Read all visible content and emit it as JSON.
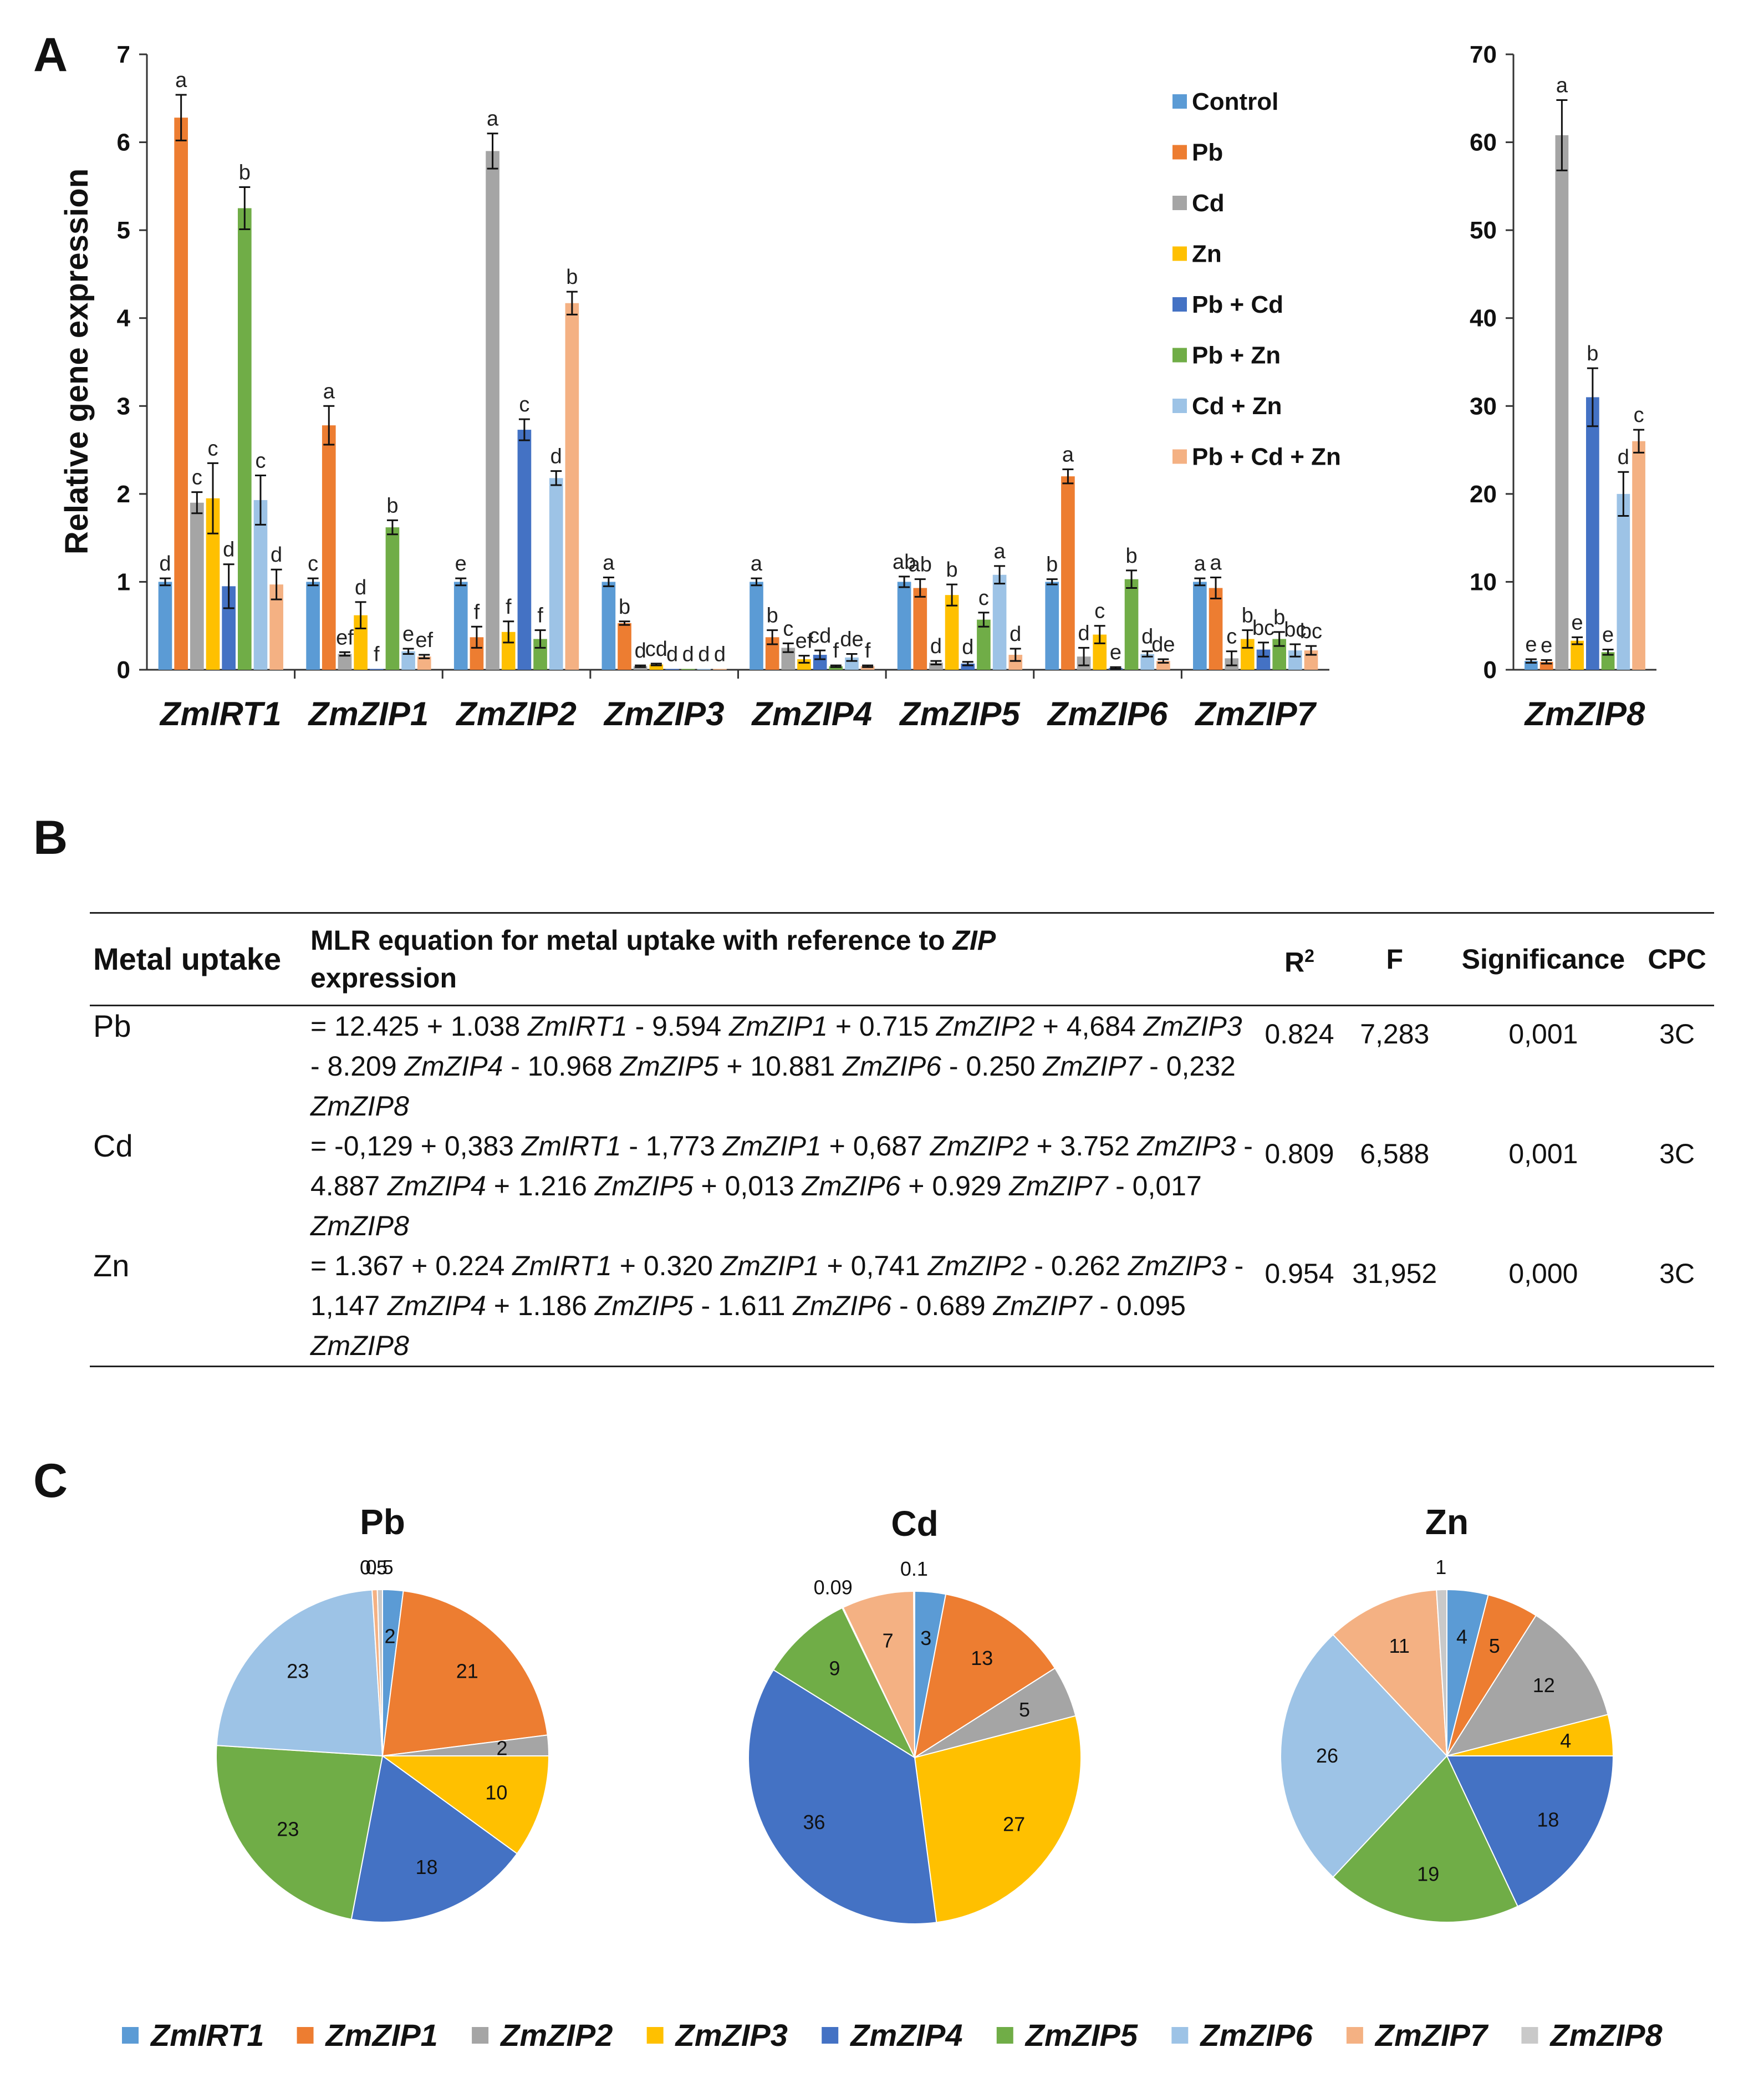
{
  "panels": {
    "a": "A",
    "b": "B",
    "c": "C"
  },
  "colors": {
    "ZmIRT1": "#5B9BD5",
    "ZmZIP1": "#ED7D31",
    "ZmZIP2": "#A5A5A5",
    "ZmZIP3": "#FFC000",
    "ZmZIP4": "#4472C4",
    "ZmZIP5": "#70AD47",
    "ZmZIP6": "#9DC3E6",
    "ZmZIP7": "#F4B183",
    "ZmZIP8": "#C9C9C9",
    "Control": "#5B9BD5",
    "Pb": "#ED7D31",
    "Cd": "#A5A5A5",
    "Zn": "#FFC000",
    "Pb + Cd": "#4472C4",
    "Pb +  Zn": "#70AD47",
    "Cd + Zn": "#9DC3E6",
    "Pb + Cd + Zn": "#F4B183"
  },
  "chart_data": [
    {
      "type": "bar",
      "id": "panelA-main",
      "ylabel": "Relative gene expression",
      "ylim": [
        0,
        7
      ],
      "yticks": [
        "0",
        "1",
        "2",
        "3",
        "4",
        "5",
        "6",
        "7"
      ],
      "categories": [
        "ZmIRT1",
        "ZmZIP1",
        "ZmZIP2",
        "ZmZIP3",
        "ZmZIP4",
        "ZmZIP5",
        "ZmZIP6",
        "ZmZIP7"
      ],
      "legend": [
        "Control",
        "Pb",
        "Cd",
        "Zn",
        "Pb + Cd",
        "Pb +  Zn",
        "Cd + Zn",
        "Pb + Cd + Zn"
      ],
      "series": [
        {
          "name": "Control",
          "values": [
            1.0,
            1.0,
            1.0,
            1.0,
            1.0,
            1.0,
            1.0,
            1.0
          ],
          "errors": [
            0.04,
            0.04,
            0.04,
            0.05,
            0.04,
            0.06,
            0.03,
            0.04
          ],
          "labels": [
            "d",
            "c",
            "e",
            "a",
            "a",
            "ab",
            "b",
            "a"
          ]
        },
        {
          "name": "Pb",
          "values": [
            6.28,
            2.78,
            0.37,
            0.53,
            0.37,
            0.93,
            2.2,
            0.93
          ],
          "errors": [
            0.26,
            0.22,
            0.12,
            0.02,
            0.08,
            0.1,
            0.08,
            0.12
          ],
          "labels": [
            "a",
            "a",
            "f",
            "b",
            "b",
            "ab",
            "a",
            "a"
          ]
        },
        {
          "name": "Cd",
          "values": [
            1.9,
            0.18,
            5.9,
            0.04,
            0.25,
            0.08,
            0.15,
            0.13
          ],
          "errors": [
            0.12,
            0.02,
            0.2,
            0.01,
            0.05,
            0.02,
            0.1,
            0.08
          ],
          "labels": [
            "c",
            "ef",
            "a",
            "d",
            "c",
            "d",
            "d",
            "c"
          ]
        },
        {
          "name": "Zn",
          "values": [
            1.95,
            0.62,
            0.43,
            0.06,
            0.12,
            0.85,
            0.4,
            0.35
          ],
          "errors": [
            0.4,
            0.15,
            0.12,
            0.01,
            0.04,
            0.12,
            0.1,
            0.1
          ],
          "labels": [
            "c",
            "d",
            "f",
            "cd",
            "ef",
            "b",
            "c",
            "b"
          ]
        },
        {
          "name": "Pb + Cd",
          "values": [
            0.95,
            0.01,
            2.73,
            0.01,
            0.17,
            0.07,
            0.02,
            0.23
          ],
          "errors": [
            0.25,
            0.0,
            0.12,
            0.0,
            0.05,
            0.02,
            0.01,
            0.08
          ],
          "labels": [
            "d",
            "f",
            "c",
            "d",
            "cd",
            "d",
            "e",
            "bc"
          ]
        },
        {
          "name": "Pb +  Zn",
          "values": [
            5.25,
            1.62,
            0.35,
            0.01,
            0.04,
            0.57,
            1.03,
            0.35
          ],
          "errors": [
            0.24,
            0.08,
            0.1,
            0.0,
            0.01,
            0.08,
            0.1,
            0.08
          ],
          "labels": [
            "b",
            "b",
            "f",
            "d",
            "f",
            "c",
            "b",
            "b"
          ]
        },
        {
          "name": "Cd + Zn",
          "values": [
            1.93,
            0.21,
            2.18,
            0.01,
            0.14,
            1.08,
            0.18,
            0.22
          ],
          "errors": [
            0.28,
            0.03,
            0.08,
            0.0,
            0.04,
            0.1,
            0.03,
            0.07
          ],
          "labels": [
            "c",
            "e",
            "d",
            "d",
            "de",
            "a",
            "d",
            "bc"
          ]
        },
        {
          "name": "Pb + Cd + Zn",
          "values": [
            0.97,
            0.15,
            4.17,
            0.01,
            0.04,
            0.17,
            0.1,
            0.22
          ],
          "errors": [
            0.17,
            0.02,
            0.13,
            0.0,
            0.01,
            0.07,
            0.02,
            0.05
          ],
          "labels": [
            "d",
            "ef",
            "b",
            "d",
            "f",
            "d",
            "de",
            "bc"
          ]
        }
      ]
    },
    {
      "type": "bar",
      "id": "panelA-zip8",
      "ylim": [
        0,
        70
      ],
      "yticks": [
        "0",
        "10",
        "20",
        "30",
        "40",
        "50",
        "60",
        "70"
      ],
      "categories": [
        "ZmZIP8"
      ],
      "series": [
        {
          "name": "Control",
          "values": [
            1.0
          ],
          "errors": [
            0.2
          ],
          "labels": [
            "e"
          ]
        },
        {
          "name": "Pb",
          "values": [
            0.9
          ],
          "errors": [
            0.2
          ],
          "labels": [
            "e"
          ]
        },
        {
          "name": "Cd",
          "values": [
            60.8
          ],
          "errors": [
            4.0
          ],
          "labels": [
            "a"
          ]
        },
        {
          "name": "Zn",
          "values": [
            3.3
          ],
          "errors": [
            0.4
          ],
          "labels": [
            "e"
          ]
        },
        {
          "name": "Pb + Cd",
          "values": [
            31.0
          ],
          "errors": [
            3.3
          ],
          "labels": [
            "b"
          ]
        },
        {
          "name": "Pb +  Zn",
          "values": [
            2.0
          ],
          "errors": [
            0.3
          ],
          "labels": [
            "e"
          ]
        },
        {
          "name": "Cd + Zn",
          "values": [
            20.0
          ],
          "errors": [
            2.5
          ],
          "labels": [
            "d"
          ]
        },
        {
          "name": "Pb + Cd + Zn",
          "values": [
            26.0
          ],
          "errors": [
            1.3
          ],
          "labels": [
            "c"
          ]
        }
      ]
    },
    {
      "type": "table",
      "id": "panelB",
      "headers": {
        "metal": "Metal uptake",
        "eq_pre": "MLR equation for metal uptake with reference to ",
        "eq_gene": "ZIP",
        "eq_post": "expression",
        "r2": "R",
        "r2_sup": "2",
        "f": "F",
        "sig": "Significance",
        "cpc": "CPC"
      },
      "rows": [
        {
          "metal": "Pb",
          "equation": "= 12.425 + 1.038 ZmIRT1 - 9.594 ZmZIP1 + 0.715 ZmZIP2 + 4,684 ZmZIP3 - 8.209 ZmZIP4 - 10.968 ZmZIP5 + 10.881 ZmZIP6 - 0.250 ZmZIP7 - 0,232 ZmZIP8",
          "r2": "0.824",
          "f": "7,283",
          "sig": "0,001",
          "cpc": "3C"
        },
        {
          "metal": "Cd",
          "equation": "= -0,129 + 0,383 ZmIRT1 - 1,773 ZmZIP1 + 0,687 ZmZIP2 + 3.752 ZmZIP3 - 4.887 ZmZIP4 + 1.216 ZmZIP5 + 0,013 ZmZIP6 + 0.929 ZmZIP7 - 0,017 ZmZIP8",
          "r2": "0.809",
          "f": "6,588",
          "sig": "0,001",
          "cpc": "3C"
        },
        {
          "metal": "Zn",
          "equation": " = 1.367 + 0.224 ZmIRT1 + 0.320 ZmZIP1 + 0,741 ZmZIP2 - 0.262 ZmZIP3 - 1,147 ZmZIP4 + 1.186 ZmZIP5 - 1.611 ZmZIP6 - 0.689 ZmZIP7 - 0.095 ZmZIP8",
          "r2": "0.954",
          "f": "31,952",
          "sig": "0,000",
          "cpc": "3C"
        }
      ]
    },
    {
      "type": "pie",
      "id": "panelC",
      "legend": [
        "ZmIRT1",
        "ZmZIP1",
        "ZmZIP2",
        "ZmZIP3",
        "ZmZIP4",
        "ZmZIP5",
        "ZmZIP6",
        "ZmZIP7",
        "ZmZIP8"
      ],
      "pies": [
        {
          "title": "Pb",
          "values": [
            2,
            21,
            2,
            10,
            18,
            23,
            23,
            0.5,
            0.5
          ],
          "labels": [
            "2",
            "21",
            "2",
            "10",
            "18",
            "23",
            "23",
            "0.5",
            "0.5"
          ]
        },
        {
          "title": "Cd",
          "values": [
            3,
            13,
            5,
            27,
            36,
            9,
            0.09,
            7,
            0.1
          ],
          "labels": [
            "3",
            "13",
            "5",
            "27",
            "36",
            "9",
            "0.09",
            "7",
            "0.1"
          ]
        },
        {
          "title": "Zn",
          "values": [
            4,
            5,
            12,
            4,
            18,
            19,
            26,
            11,
            1
          ],
          "labels": [
            "4",
            "5",
            "12",
            "4",
            "18",
            "19",
            "26",
            "11",
            "1"
          ]
        }
      ]
    }
  ]
}
